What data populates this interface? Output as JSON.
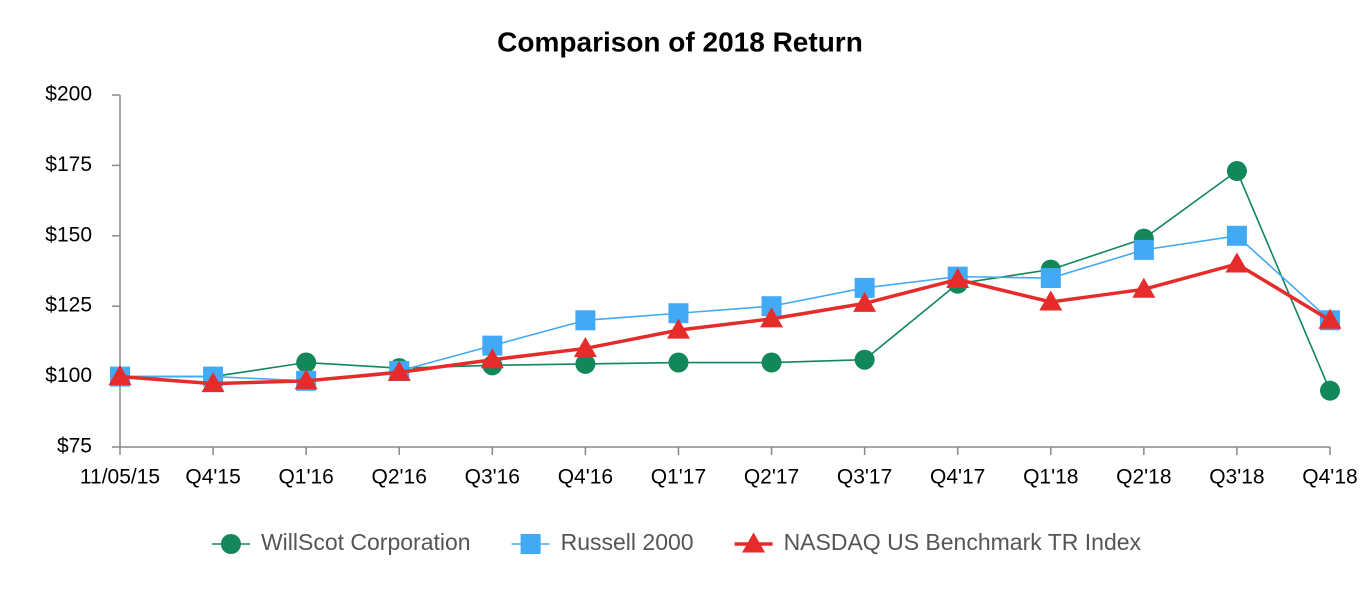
{
  "chart_data": {
    "type": "line",
    "title": "Comparison of 2018 Return",
    "categories": [
      "11/05/15",
      "Q4'15",
      "Q1'16",
      "Q2'16",
      "Q3'16",
      "Q4'16",
      "Q1'17",
      "Q2'17",
      "Q3'17",
      "Q4'17",
      "Q1'18",
      "Q2'18",
      "Q3'18",
      "Q4'18"
    ],
    "series": [
      {
        "name": "WillScot Corporation",
        "color": "#12875a",
        "marker": "circle",
        "values": [
          100,
          100,
          105,
          103,
          104,
          104.5,
          105,
          105,
          106,
          133,
          138,
          149,
          173,
          95
        ]
      },
      {
        "name": "Russell 2000",
        "color": "#42a9f4",
        "marker": "square",
        "values": [
          100,
          100,
          98.5,
          102,
          111,
          120,
          122.5,
          125,
          131.5,
          135.5,
          135,
          145,
          150,
          120
        ]
      },
      {
        "name": "NASDAQ US Benchmark TR Index",
        "color": "#e62b2b",
        "marker": "triangle",
        "values": [
          100,
          97.5,
          98.5,
          101.5,
          106,
          110,
          116.5,
          120.5,
          126,
          134.5,
          126.5,
          131,
          140,
          120
        ]
      }
    ],
    "ylim": [
      75,
      200
    ],
    "yticks": [
      {
        "value": 75,
        "label": "$75"
      },
      {
        "value": 100,
        "label": "$100"
      },
      {
        "value": 125,
        "label": "$125"
      },
      {
        "value": 150,
        "label": "$150"
      },
      {
        "value": 175,
        "label": "$175"
      },
      {
        "value": 200,
        "label": "$200"
      }
    ],
    "grid": false,
    "legend": "bottom"
  }
}
